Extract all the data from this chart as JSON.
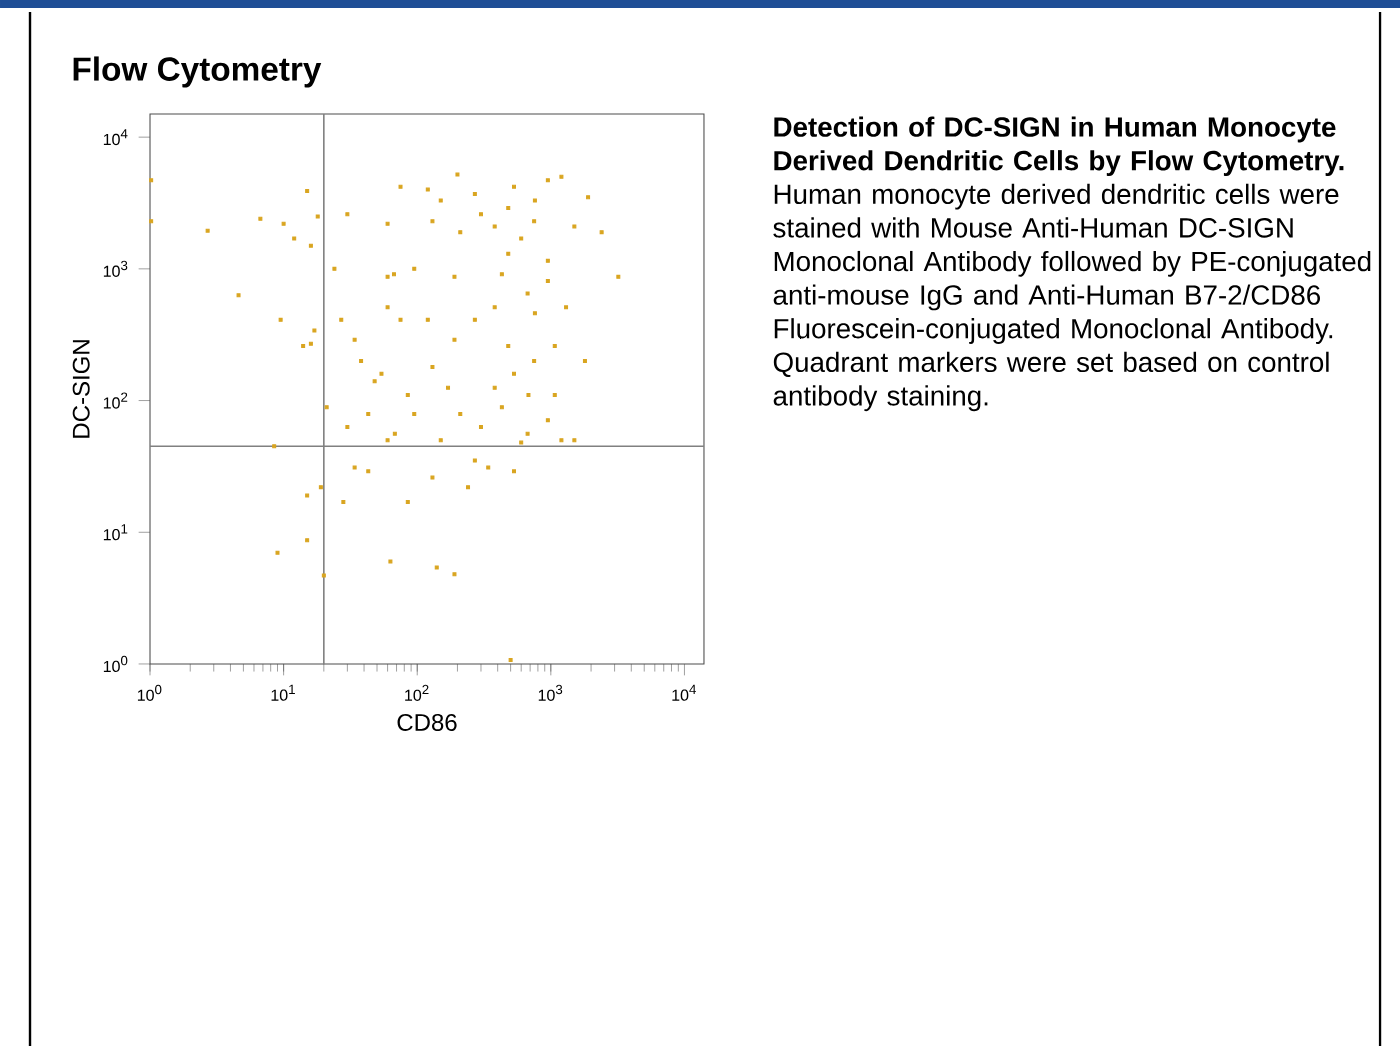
{
  "chart_data": {
    "type": "scatter",
    "title": "Flow Cytometry",
    "xlabel": "CD86",
    "ylabel": "DC-SIGN",
    "log": "xy",
    "xlim": [
      1,
      14000
    ],
    "ylim": [
      1,
      15000
    ],
    "xticks": [
      {
        "value": 1,
        "label": "10$^{0}$"
      },
      {
        "value": 10,
        "label": "10$^{1}$"
      },
      {
        "value": 100,
        "label": "10$^{2}$"
      },
      {
        "value": 1000,
        "label": "10$^{3}$"
      },
      {
        "value": 10000,
        "label": "10$^{4}$"
      }
    ],
    "yticks": [
      {
        "value": 1,
        "label": "10$^{0}$"
      },
      {
        "value": 10,
        "label": "10$^{1}$"
      },
      {
        "value": 100,
        "label": "10$^{2}$"
      },
      {
        "value": 1000,
        "label": "10$^{3}$"
      },
      {
        "value": 10000,
        "label": "10$^{4}$"
      }
    ],
    "grid": false,
    "marker": "square",
    "ref_lines": [
      {
        "axis": "x",
        "value": 20,
        "color": "#808080"
      },
      {
        "axis": "y",
        "value": 45,
        "color": "#808080"
      }
    ],
    "annotations": [
      "**Detection of DC-SIGN in Human Monocyte Derived Dendritic Cells by Flow Cytometry.** Human monocyte derived dendritic cells were stained with Mouse Anti-Human DC-SIGN Monoclonal Antibody followed by PE-conjugated anti-mouse IgG and Anti-Human B7-2/CD86 Fluorescein-conjugated Monoclonal Antibody. Quadrant markers were set based on control antibody staining."
    ],
    "color": "#d9a520",
    "x": [
      130,
      210,
      380,
      600,
      750,
      480,
      950,
      670,
      950,
      270,
      530,
      950,
      75,
      60,
      150,
      1500,
      2400,
      3200,
      1300,
      380,
      270,
      480,
      750,
      530,
      1070,
      1800,
      190,
      120,
      95,
      67,
      210,
      430,
      600,
      670,
      270,
      240,
      340,
      530,
      1200,
      1500,
      27,
      34,
      48,
      54,
      75,
      60,
      38,
      21,
      30,
      43,
      60,
      68,
      85,
      130,
      95,
      150,
      34,
      43,
      28,
      85,
      130,
      63,
      140,
      190,
      20,
      15,
      15,
      9,
      8.5,
      19,
      17,
      16,
      14,
      9.5,
      4.6,
      2.7,
      6.7,
      10,
      12,
      15,
      18,
      30,
      16,
      24,
      60,
      190,
      1.02,
      1.02,
      500,
      200,
      1200,
      1900,
      120,
      480,
      300,
      760,
      430,
      760,
      1070,
      680,
      950,
      300,
      170,
      380
    ],
    "values": [
      2300,
      1900,
      2100,
      1700,
      2300,
      1300,
      1150,
      650,
      810,
      3700,
      4200,
      4700,
      4200,
      2200,
      3300,
      2100,
      1900,
      870,
      510,
      510,
      410,
      260,
      200,
      160,
      110,
      200,
      290,
      410,
      1000,
      910,
      79,
      89,
      48,
      56,
      35,
      22,
      31,
      29,
      50,
      50,
      410,
      290,
      140,
      160,
      410,
      510,
      200,
      89,
      63,
      79,
      50,
      56,
      110,
      180,
      79,
      50,
      31,
      29,
      17,
      17,
      26,
      6,
      5.4,
      4.8,
      4.7,
      19,
      8.7,
      7,
      45,
      22,
      340,
      270,
      260,
      410,
      630,
      1950,
      2400,
      2200,
      1700,
      3900,
      2500,
      2600,
      1500,
      1000,
      870,
      870,
      2300,
      4700,
      1.07,
      5200,
      5000,
      3500,
      4000,
      2900,
      2600,
      3300,
      910,
      460,
      260,
      110,
      71,
      63,
      125,
      125
    ]
  }
}
